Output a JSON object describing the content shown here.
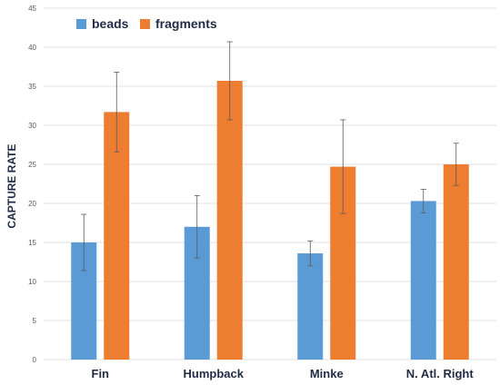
{
  "chart_data": {
    "type": "bar",
    "categories": [
      "Fin",
      "Humpback",
      "Minke",
      "N. Atl. Right"
    ],
    "series": [
      {
        "name": "beads",
        "color": "#5b9bd5",
        "values": [
          15.0,
          17.0,
          13.6,
          20.3
        ],
        "error": [
          3.6,
          4.0,
          1.6,
          1.5
        ]
      },
      {
        "name": "fragments",
        "color": "#ed7d31",
        "values": [
          31.7,
          35.7,
          24.7,
          25.0
        ],
        "error": [
          5.1,
          5.0,
          6.0,
          2.7
        ]
      }
    ],
    "ylabel": "CAPTURE RATE",
    "xlabel": "",
    "ylim": [
      0,
      45
    ],
    "yticks": [
      0,
      5,
      10,
      15,
      20,
      25,
      30,
      35,
      40,
      45
    ],
    "grid": true,
    "legend_position": "top-left"
  }
}
